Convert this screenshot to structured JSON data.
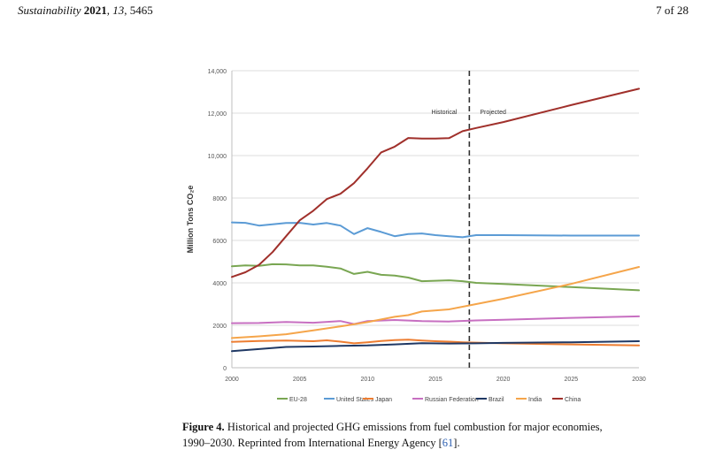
{
  "header": {
    "journal": "Sustainability",
    "year": "2021",
    "volume": "13",
    "article": "5465",
    "page": "7 of 28"
  },
  "chart_data": {
    "type": "line",
    "ylabel": "Million Tons CO₂e",
    "xlim": [
      2000,
      2030
    ],
    "ylim": [
      0,
      14000
    ],
    "xticks": [
      "2000",
      "2005",
      "2010",
      "2015",
      "2020",
      "2025",
      "2030"
    ],
    "yticks": [
      "0",
      "2000",
      "4000",
      "6000",
      "8000",
      "10,000",
      "12,000",
      "14,000"
    ],
    "divider_x": 2017.5,
    "annotations": {
      "left": "Historical",
      "right": "Projected"
    },
    "grid": "horizontal",
    "legend_position": "bottom",
    "series": [
      {
        "name": "EU-28",
        "color": "#79a652",
        "x": [
          2000,
          2001,
          2002,
          2003,
          2004,
          2005,
          2006,
          2007,
          2008,
          2009,
          2010,
          2011,
          2012,
          2013,
          2014,
          2015,
          2016,
          2017,
          2018,
          2020,
          2025,
          2030
        ],
        "y": [
          4780,
          4820,
          4800,
          4880,
          4870,
          4820,
          4820,
          4760,
          4680,
          4420,
          4520,
          4380,
          4340,
          4250,
          4080,
          4100,
          4120,
          4080,
          4000,
          3950,
          3800,
          3650
        ]
      },
      {
        "name": "United States",
        "color": "#5b9bd5",
        "x": [
          2000,
          2001,
          2002,
          2003,
          2004,
          2005,
          2006,
          2007,
          2008,
          2009,
          2010,
          2011,
          2012,
          2013,
          2014,
          2015,
          2016,
          2017,
          2018,
          2020,
          2025,
          2030
        ],
        "y": [
          6850,
          6830,
          6700,
          6760,
          6820,
          6830,
          6750,
          6820,
          6700,
          6300,
          6580,
          6400,
          6200,
          6300,
          6330,
          6250,
          6200,
          6150,
          6250,
          6250,
          6230,
          6230
        ]
      },
      {
        "name": "Japan",
        "color": "#ed7d31",
        "x": [
          2000,
          2002,
          2004,
          2006,
          2007,
          2008,
          2009,
          2010,
          2011,
          2012,
          2013,
          2014,
          2015,
          2016,
          2017,
          2020,
          2025,
          2030
        ],
        "y": [
          1220,
          1260,
          1280,
          1250,
          1290,
          1230,
          1150,
          1200,
          1260,
          1300,
          1320,
          1280,
          1250,
          1230,
          1200,
          1150,
          1100,
          1050
        ]
      },
      {
        "name": "Russian Federation",
        "color": "#c76fc1",
        "x": [
          2000,
          2002,
          2004,
          2006,
          2008,
          2009,
          2010,
          2012,
          2014,
          2016,
          2018,
          2020,
          2025,
          2030
        ],
        "y": [
          2100,
          2110,
          2160,
          2120,
          2200,
          2060,
          2200,
          2250,
          2200,
          2180,
          2230,
          2260,
          2350,
          2420
        ]
      },
      {
        "name": "Brazil",
        "color": "#1f3864",
        "x": [
          2000,
          2002,
          2004,
          2006,
          2008,
          2010,
          2012,
          2014,
          2016,
          2018,
          2020,
          2025,
          2030
        ],
        "y": [
          780,
          880,
          980,
          1000,
          1030,
          1050,
          1100,
          1160,
          1140,
          1150,
          1170,
          1200,
          1250
        ]
      },
      {
        "name": "India",
        "color": "#f5a54a",
        "x": [
          2000,
          2002,
          2004,
          2006,
          2008,
          2010,
          2012,
          2013,
          2014,
          2016,
          2018,
          2020,
          2025,
          2030
        ],
        "y": [
          1400,
          1480,
          1580,
          1760,
          1950,
          2150,
          2400,
          2480,
          2650,
          2750,
          3000,
          3250,
          3950,
          4750
        ]
      },
      {
        "name": "China",
        "color": "#a0302b",
        "x": [
          2000,
          2001,
          2002,
          2003,
          2004,
          2005,
          2006,
          2007,
          2008,
          2009,
          2010,
          2011,
          2012,
          2013,
          2014,
          2015,
          2016,
          2017,
          2018,
          2020,
          2025,
          2030
        ],
        "y": [
          4280,
          4500,
          4850,
          5450,
          6200,
          6950,
          7400,
          7950,
          8200,
          8700,
          9400,
          10150,
          10420,
          10830,
          10800,
          10800,
          10820,
          11150,
          11300,
          11580,
          12380,
          13150
        ]
      }
    ]
  },
  "caption": {
    "label": "Figure 4.",
    "text": "Historical and projected GHG emissions from fuel combustion for major economies,",
    "text2": "1990–2030. Reprinted from International Energy Agency [",
    "ref": "61",
    "text3": "]."
  }
}
